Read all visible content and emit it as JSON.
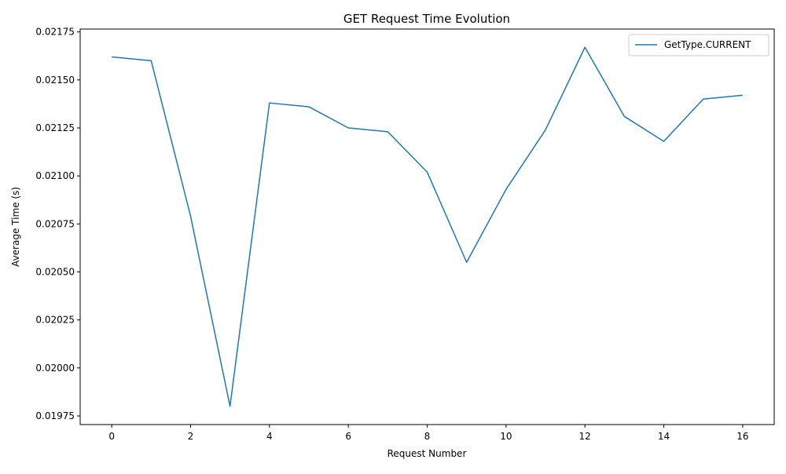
{
  "chart_data": {
    "type": "line",
    "title": "GET Request Time Evolution",
    "xlabel": "Request Number",
    "ylabel": "Average Time (s)",
    "xlim": [
      -0.8,
      16.8
    ],
    "ylim": [
      0.019705,
      0.021765
    ],
    "x_ticks": [
      0,
      2,
      4,
      6,
      8,
      10,
      12,
      14,
      16
    ],
    "x_tick_labels": [
      "0",
      "2",
      "4",
      "6",
      "8",
      "10",
      "12",
      "14",
      "16"
    ],
    "y_ticks": [
      0.01975,
      0.02,
      0.02025,
      0.0205,
      0.02075,
      0.021,
      0.02125,
      0.0215,
      0.02175
    ],
    "y_tick_labels": [
      "0.01975",
      "0.02000",
      "0.02025",
      "0.02050",
      "0.02075",
      "0.02100",
      "0.02125",
      "0.02150",
      "0.02175"
    ],
    "grid": false,
    "legend": {
      "placement": "top-right"
    },
    "series": [
      {
        "name": "GetType.CURRENT",
        "color": "#1f77b4",
        "x": [
          0,
          1,
          2,
          3,
          4,
          5,
          6,
          7,
          8,
          9,
          10,
          11,
          12,
          13,
          14,
          15,
          16
        ],
        "y": [
          0.02162,
          0.0216,
          0.02079,
          0.0198,
          0.02138,
          0.02136,
          0.02125,
          0.02123,
          0.02102,
          0.02055,
          0.02093,
          0.02124,
          0.02167,
          0.02131,
          0.02118,
          0.0214,
          0.02142
        ]
      }
    ]
  }
}
